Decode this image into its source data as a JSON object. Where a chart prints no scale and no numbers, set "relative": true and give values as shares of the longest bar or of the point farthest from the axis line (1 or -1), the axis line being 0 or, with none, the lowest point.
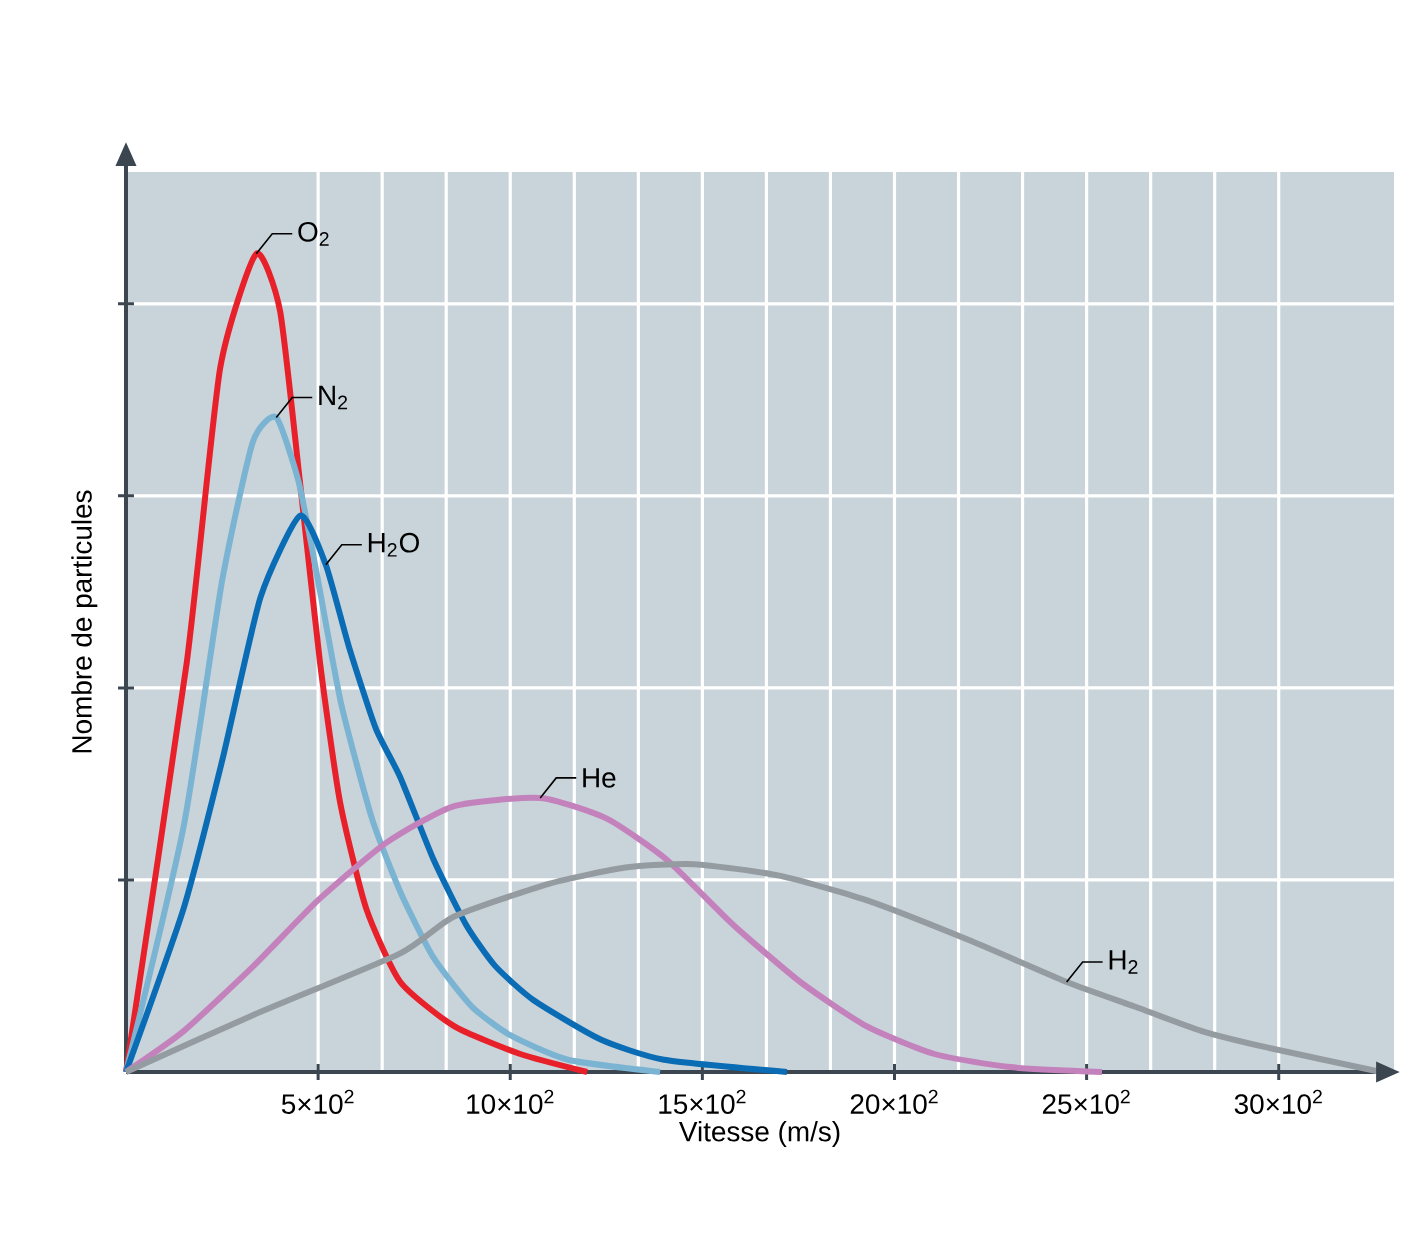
{
  "chart_data": {
    "type": "line",
    "relative": true,
    "xlabel": "Vitesse (m/s)",
    "ylabel": "Nombre de particules",
    "grid": true,
    "tick_labels": "x",
    "xlim": [
      0,
      3300
    ],
    "xticks": [
      {
        "value": 500,
        "label": "5×10$^{2}$"
      },
      {
        "value": 1000,
        "label": "10×10$^{2}$"
      },
      {
        "value": 1500,
        "label": "15×10$^{2}$"
      },
      {
        "value": 2000,
        "label": "20×10$^{2}$"
      },
      {
        "value": 2500,
        "label": "25×10$^{2}$"
      },
      {
        "value": 3000,
        "label": "30×10$^{2}$"
      }
    ],
    "series": [
      {
        "name": "O$_{2}$",
        "color": "#e8202a",
        "x": [
          0,
          158,
          245,
          339,
          401,
          453,
          505,
          557,
          625,
          714,
          854,
          1026,
          1200
        ],
        "values": [
          0,
          0.5,
          0.86,
          1,
          0.93,
          0.72,
          0.5,
          0.33,
          0.2,
          0.11,
          0.056,
          0.022,
          0
        ]
      },
      {
        "name": "N$_{2}$",
        "color": "#7ab4d2",
        "x": [
          0,
          150,
          250,
          330,
          391,
          450,
          500,
          560,
          640,
          714,
          800,
          900,
          1000,
          1150,
          1390
        ],
        "values": [
          0,
          0.3,
          0.6,
          0.77,
          0.8,
          0.72,
          0.6,
          0.45,
          0.31,
          0.22,
          0.14,
          0.08,
          0.045,
          0.015,
          0
        ]
      },
      {
        "name": "H$_{2}$O",
        "color": "#0a6cb4",
        "x": [
          0,
          150,
          250,
          350,
          453,
          520,
          580,
          650,
          714,
          800,
          885,
          960,
          1060,
          1234,
          1400,
          1720
        ],
        "values": [
          0,
          0.2,
          0.38,
          0.58,
          0.68,
          0.62,
          0.52,
          0.42,
          0.36,
          0.26,
          0.18,
          0.13,
          0.088,
          0.04,
          0.015,
          0
        ]
      },
      {
        "name": "He",
        "color": "#c482bc",
        "x": [
          0,
          150,
          333,
          500,
          677,
          854,
          1078,
          1250,
          1406,
          1580,
          1755,
          1927,
          2104,
          2300,
          2540
        ],
        "values": [
          0,
          0.05,
          0.13,
          0.21,
          0.28,
          0.325,
          0.335,
          0.31,
          0.26,
          0.18,
          0.11,
          0.056,
          0.022,
          0.006,
          0
        ]
      },
      {
        "name": "H$_{2}$",
        "color": "#959ca1",
        "x": [
          0,
          333,
          714,
          854,
          1100,
          1300,
          1479,
          1700,
          1927,
          2200,
          2448,
          2625,
          2800,
          2969,
          3266
        ],
        "values": [
          0,
          0.07,
          0.145,
          0.19,
          0.23,
          0.25,
          0.254,
          0.24,
          0.21,
          0.16,
          0.11,
          0.08,
          0.05,
          0.03,
          0
        ]
      }
    ]
  }
}
